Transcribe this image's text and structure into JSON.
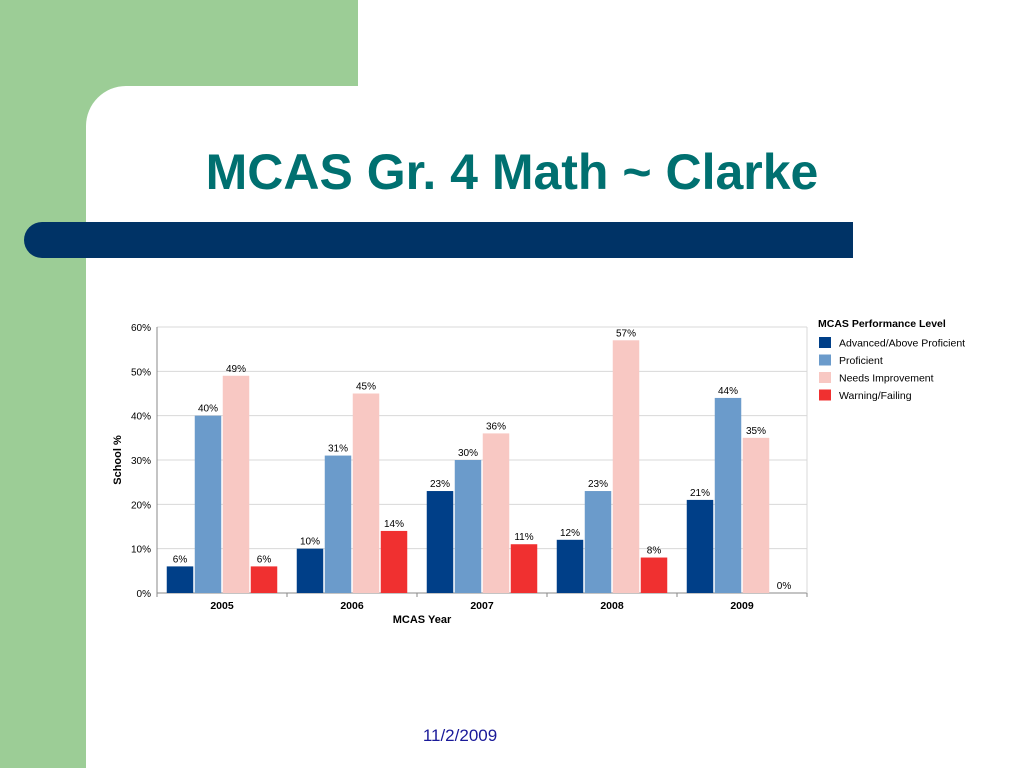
{
  "slide": {
    "title": "MCAS Gr. 4 Math ~ Clarke",
    "date": "11/2/2009"
  },
  "colors": {
    "background_green": "#9ccd96",
    "title_teal": "#007070",
    "band_navy": "#003366"
  },
  "chart_data": {
    "type": "bar",
    "categories": [
      "2005",
      "2006",
      "2007",
      "2008",
      "2009"
    ],
    "series": [
      {
        "name": "Advanced/Above Proficient",
        "color": "#003f88",
        "values": [
          6,
          10,
          23,
          12,
          21
        ],
        "labels": [
          "6%",
          "10%",
          "23%",
          "12%",
          "21%"
        ]
      },
      {
        "name": "Proficient",
        "color": "#6b9bcb",
        "values": [
          40,
          31,
          30,
          23,
          44
        ],
        "labels": [
          "40%",
          "31%",
          "30%",
          "23%",
          "44%"
        ]
      },
      {
        "name": "Needs Improvement",
        "color": "#f8c8c3",
        "values": [
          49,
          45,
          36,
          57,
          35
        ],
        "labels": [
          "49%",
          "45%",
          "36%",
          "57%",
          "35%"
        ]
      },
      {
        "name": "Warning/Failing",
        "color": "#f03030",
        "values": [
          6,
          14,
          11,
          8,
          0
        ],
        "labels": [
          "6%",
          "14%",
          "11%",
          "8%",
          "0%"
        ]
      }
    ],
    "xlabel": "MCAS Year",
    "ylabel": "School %",
    "ylim": [
      0,
      60
    ],
    "yticks": [
      "0%",
      "10%",
      "20%",
      "30%",
      "40%",
      "50%",
      "60%"
    ],
    "legend_title": "MCAS Performance Level",
    "legend_position": "right",
    "grid": true
  }
}
